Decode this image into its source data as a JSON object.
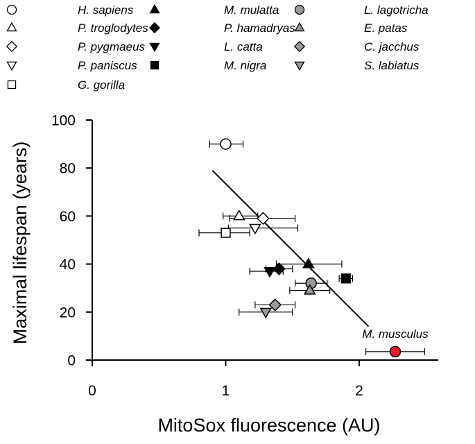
{
  "chart_data": {
    "type": "scatter",
    "title": "",
    "xlabel": "MitoSox fluorescence (AU)",
    "ylabel": "Maximal lifespan (years)",
    "xlim": [
      0,
      2.6
    ],
    "ylim": [
      0,
      100
    ],
    "xticks": [
      0,
      1,
      2
    ],
    "xtick_labels": [
      "0",
      "1",
      "2"
    ],
    "yticks": [
      0,
      20,
      40,
      60,
      80,
      100
    ],
    "ytick_labels": [
      "0",
      "20",
      "40",
      "60",
      "80",
      "100"
    ],
    "grid": false,
    "legend_position": "top",
    "series": [
      {
        "name": "H. sapiens",
        "marker": "circle",
        "fill": "#ffffff",
        "x": 1.0,
        "y": 90,
        "xerr": [
          0.12,
          0.13
        ]
      },
      {
        "name": "P. troglodytes",
        "marker": "triangle-up",
        "fill": "#ffffff",
        "x": 1.1,
        "y": 60,
        "xerr": [
          0.12,
          0.14
        ]
      },
      {
        "name": "P. pygmaeus",
        "marker": "diamond",
        "fill": "#ffffff",
        "x": 1.28,
        "y": 59,
        "xerr": [
          0.25,
          0.24
        ]
      },
      {
        "name": "P. paniscus",
        "marker": "triangle-down",
        "fill": "#ffffff",
        "x": 1.22,
        "y": 55,
        "xerr": [
          0.2,
          0.32
        ]
      },
      {
        "name": "G. gorilla",
        "marker": "square",
        "fill": "#ffffff",
        "x": 1.0,
        "y": 53,
        "xerr": [
          0.2,
          0.18
        ]
      },
      {
        "name": "M. mulatta",
        "marker": "triangle-up",
        "fill": "#000000",
        "x": 1.62,
        "y": 40,
        "xerr": [
          0.24,
          0.25
        ]
      },
      {
        "name": "P. hamadryas",
        "marker": "diamond",
        "fill": "#000000",
        "x": 1.4,
        "y": 38,
        "xerr": [
          0.1,
          0.1
        ]
      },
      {
        "name": "L. catta",
        "marker": "triangle-down",
        "fill": "#000000",
        "x": 1.33,
        "y": 37,
        "xerr": [
          0.15,
          0.1
        ]
      },
      {
        "name": "M. nigra",
        "marker": "square",
        "fill": "#000000",
        "x": 1.9,
        "y": 34,
        "xerr": [
          0.05,
          0.05
        ]
      },
      {
        "name": "L. lagotricha",
        "marker": "circle",
        "fill": "#999999",
        "x": 1.64,
        "y": 32,
        "xerr": [
          0.12,
          0.12
        ]
      },
      {
        "name": "E. patas",
        "marker": "triangle-up",
        "fill": "#999999",
        "x": 1.63,
        "y": 29,
        "xerr": [
          0.15,
          0.15
        ]
      },
      {
        "name": "C. jacchus",
        "marker": "diamond",
        "fill": "#999999",
        "x": 1.37,
        "y": 23,
        "xerr": [
          0.15,
          0.15
        ]
      },
      {
        "name": "S. labiatus",
        "marker": "triangle-down",
        "fill": "#999999",
        "x": 1.3,
        "y": 20,
        "xerr": [
          0.2,
          0.2
        ]
      }
    ],
    "highlight": {
      "name": "M. musculus",
      "marker": "circle",
      "fill": "#ee1c24",
      "x": 2.27,
      "y": 3.5,
      "xerr": [
        0.22,
        0.22
      ]
    },
    "fit_line": {
      "x1": 0.9,
      "y1": 79,
      "x2": 2.07,
      "y2": 14
    }
  }
}
